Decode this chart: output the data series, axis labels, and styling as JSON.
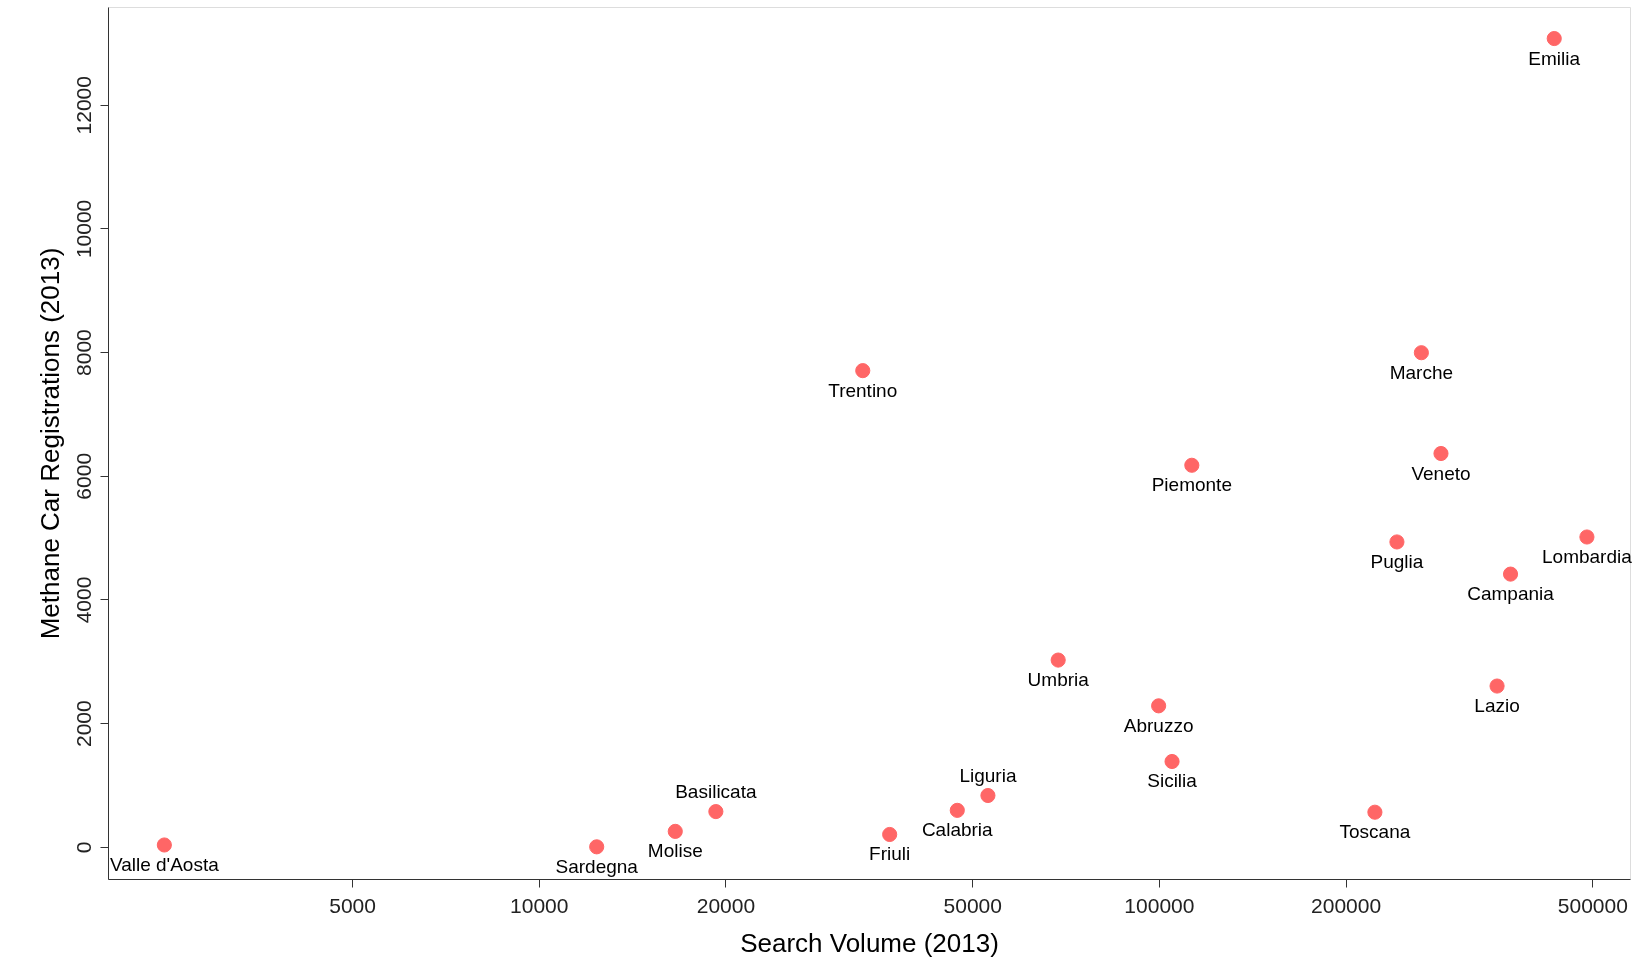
{
  "chart_data": {
    "type": "scatter",
    "xlabel": "Search Volume (2013)",
    "ylabel": "Methane Car Registrations (2013)",
    "log": "x",
    "marker": "circle",
    "color": "#ff6666",
    "x": [
      434000,
      33300,
      265000,
      113000,
      285000,
      242000,
      490000,
      369000,
      68800,
      351000,
      99900,
      105000,
      53000,
      47300,
      36800,
      223000,
      2490,
      12400,
      16600,
      19300
    ],
    "values": [
      13070,
      7700,
      7990,
      6170,
      6360,
      4930,
      5010,
      4410,
      3020,
      2600,
      2280,
      1380,
      830,
      590,
      200,
      560,
      30,
      0,
      250,
      570
    ],
    "xlim": [
      2020,
      575000
    ],
    "xticks": [
      5000,
      10000,
      20000,
      50000,
      100000,
      200000,
      500000
    ],
    "ylim": [
      -520,
      13580
    ],
    "yticks": [
      0,
      2000,
      4000,
      6000,
      8000,
      10000,
      12000
    ],
    "annotations": [
      {
        "text": "Emilia",
        "x": 434000,
        "y": 13070
      },
      {
        "text": "Trentino",
        "x": 33300,
        "y": 7700
      },
      {
        "text": "Marche",
        "x": 265000,
        "y": 7990
      },
      {
        "text": "Piemonte",
        "x": 113000,
        "y": 6170
      },
      {
        "text": "Veneto",
        "x": 285000,
        "y": 6360
      },
      {
        "text": "Puglia",
        "x": 242000,
        "y": 4930
      },
      {
        "text": "Lombardia",
        "x": 490000,
        "y": 5010
      },
      {
        "text": "Campania",
        "x": 369000,
        "y": 4410
      },
      {
        "text": "Umbria",
        "x": 68800,
        "y": 3020
      },
      {
        "text": "Lazio",
        "x": 351000,
        "y": 2600
      },
      {
        "text": "Abruzzo",
        "x": 99900,
        "y": 2280
      },
      {
        "text": "Sicilia",
        "x": 105000,
        "y": 1380
      },
      {
        "text": "Liguria",
        "x": 53000,
        "y": 830
      },
      {
        "text": "Calabria",
        "x": 47300,
        "y": 590
      },
      {
        "text": "Friuli",
        "x": 36800,
        "y": 200
      },
      {
        "text": "Toscana",
        "x": 223000,
        "y": 560
      },
      {
        "text": "Valle d'Aosta",
        "x": 2490,
        "y": 30
      },
      {
        "text": "Sardegna",
        "x": 12400,
        "y": 0
      },
      {
        "text": "Molise",
        "x": 16600,
        "y": 250
      },
      {
        "text": "Basilicata",
        "x": 19300,
        "y": 570
      }
    ]
  }
}
